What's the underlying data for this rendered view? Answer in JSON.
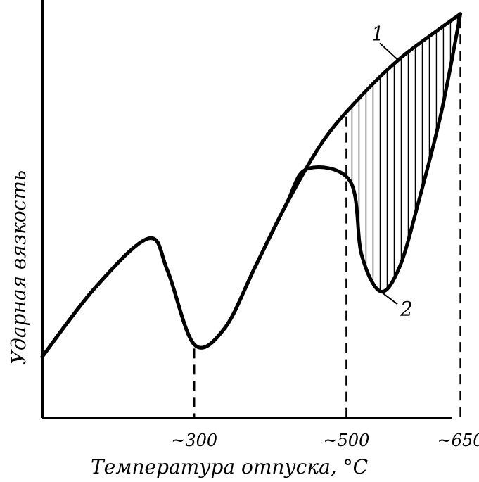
{
  "chart_data": {
    "type": "line",
    "title": "",
    "xlabel": "Температура отпуска, °С",
    "ylabel": "Ударная вязкость",
    "x_ticks": [
      {
        "value": 300,
        "label": "~300"
      },
      {
        "value": 500,
        "label": "~500"
      },
      {
        "value": 650,
        "label": "~650"
      }
    ],
    "y_ticks": [],
    "xlim": [
      100,
      655
    ],
    "ylim": [
      0,
      100
    ],
    "grid": false,
    "shaded_region": {
      "between_series": [
        "1",
        "2"
      ],
      "x_range": [
        500,
        650
      ],
      "pattern": "vertical-hatch"
    },
    "series": [
      {
        "name": "1",
        "label_text": "1",
        "x": [
          100,
          170,
          240,
          265,
          300,
          340,
          380,
          420,
          470,
          520,
          570,
          620,
          650
        ],
        "y": [
          15,
          32,
          44,
          36,
          18,
          22,
          37,
          52,
          68,
          79,
          88,
          95,
          99
        ]
      },
      {
        "name": "2",
        "label_text": "2",
        "x": [
          100,
          170,
          240,
          265,
          300,
          340,
          380,
          420,
          448,
          505,
          520,
          545,
          570,
          595,
          625,
          650
        ],
        "y": [
          15,
          32,
          44,
          36,
          18,
          22,
          37,
          52,
          61,
          58,
          40,
          31,
          37,
          53,
          75,
          99
        ]
      }
    ]
  }
}
